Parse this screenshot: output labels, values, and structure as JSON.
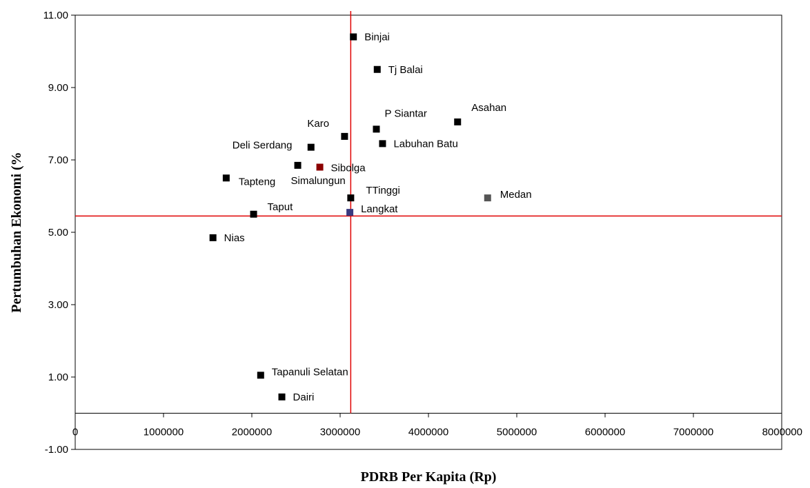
{
  "chart_data": {
    "type": "scatter",
    "title": "",
    "xlabel": "PDRB Per Kapita (Rp)",
    "ylabel": "Pertumbuhan Ekonomi (%",
    "xlim": [
      0,
      8000000
    ],
    "ylim": [
      -1,
      11
    ],
    "x_ticks": [
      "0",
      "1000000",
      "2000000",
      "3000000",
      "4000000",
      "5000000",
      "6000000",
      "7000000",
      "8000000"
    ],
    "y_ticks": [
      "11.00",
      "9.00",
      "7.00",
      "5.00",
      "3.00",
      "1.00",
      "-1.00"
    ],
    "grid": false,
    "legend": "none",
    "reference_lines": {
      "x": 3120000,
      "y": 5.45,
      "color": "#e00000"
    },
    "points": [
      {
        "label": "Binjai",
        "x": 3150000,
        "y": 10.4,
        "color": "#000000"
      },
      {
        "label": "Tj Balai",
        "x": 3420000,
        "y": 9.5,
        "color": "#000000"
      },
      {
        "label": "Asahan",
        "x": 4330000,
        "y": 8.05,
        "color": "#000000"
      },
      {
        "label": "P Siantar",
        "x": 3410000,
        "y": 7.85,
        "color": "#000000"
      },
      {
        "label": "Karo",
        "x": 3050000,
        "y": 7.65,
        "color": "#000000"
      },
      {
        "label": "Labuhan Batu",
        "x": 3480000,
        "y": 7.45,
        "color": "#000000"
      },
      {
        "label": "Deli Serdang",
        "x": 2670000,
        "y": 7.35,
        "color": "#000000"
      },
      {
        "label": "Simalungun",
        "x": 2520000,
        "y": 6.85,
        "color": "#000000"
      },
      {
        "label": "Sibolga",
        "x": 2770000,
        "y": 6.8,
        "color": "#8b0000"
      },
      {
        "label": "Tapteng",
        "x": 1710000,
        "y": 6.5,
        "color": "#000000"
      },
      {
        "label": "TTinggi",
        "x": 3120000,
        "y": 5.95,
        "color": "#000000"
      },
      {
        "label": "Medan",
        "x": 4670000,
        "y": 5.95,
        "color": "#555555"
      },
      {
        "label": "Langkat",
        "x": 3110000,
        "y": 5.55,
        "color": "#3a3a80"
      },
      {
        "label": "Taput",
        "x": 2020000,
        "y": 5.5,
        "color": "#000000"
      },
      {
        "label": "Nias",
        "x": 1560000,
        "y": 4.85,
        "color": "#000000"
      },
      {
        "label": "Tapanuli Selatan",
        "x": 2100000,
        "y": 1.05,
        "color": "#000000"
      },
      {
        "label": "Dairi",
        "x": 2340000,
        "y": 0.45,
        "color": "#000000"
      }
    ]
  }
}
